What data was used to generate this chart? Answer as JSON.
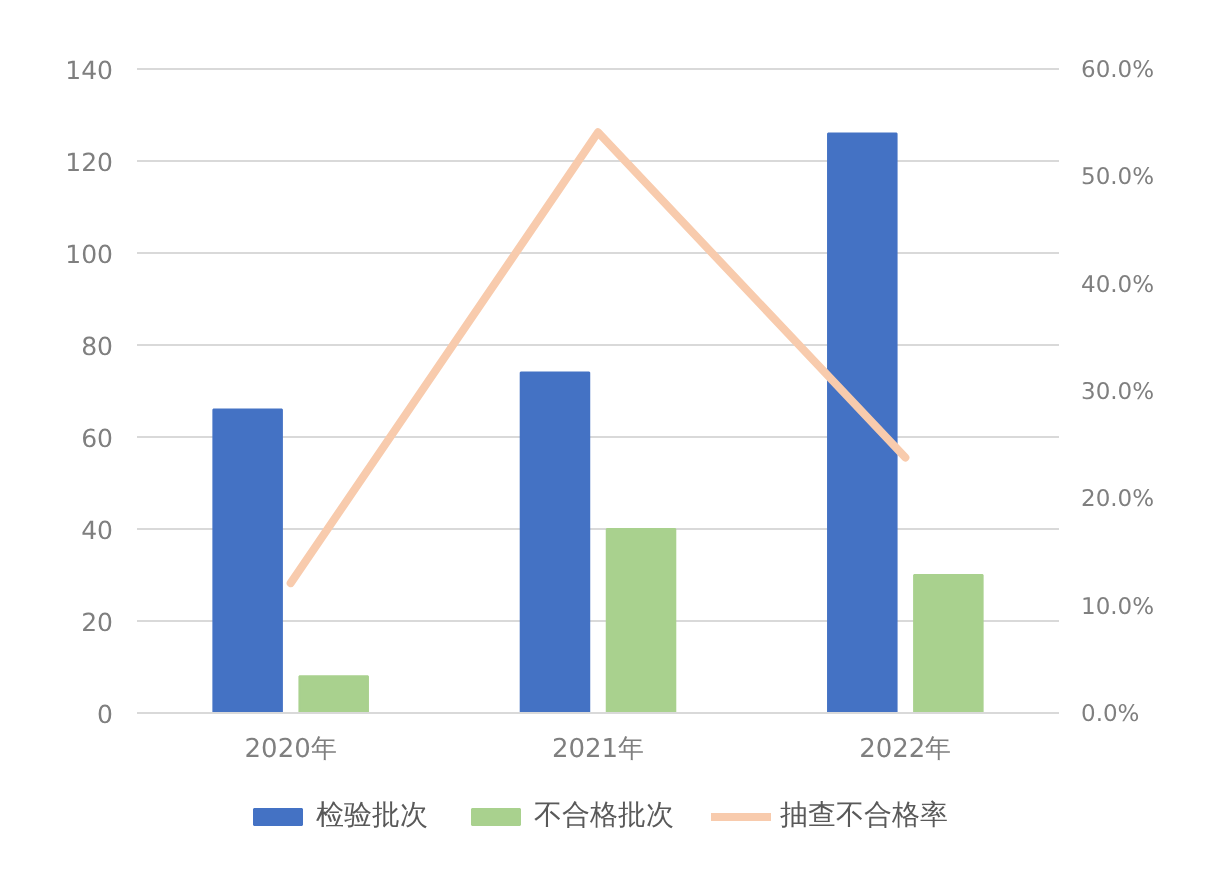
{
  "chart_data": {
    "type": "bar",
    "categories": [
      "2020年",
      "2021年",
      "2022年"
    ],
    "series": [
      {
        "name": "检验批次",
        "color": "#4472c4",
        "values": [
          66,
          74,
          126
        ]
      },
      {
        "name": "不合格批次",
        "color": "#a9d18e",
        "values": [
          8,
          40,
          30
        ]
      },
      {
        "name": "抽查不合格率",
        "type": "line",
        "axis": "y2",
        "color": "#f8cbad",
        "values": [
          12.1,
          54.1,
          23.8
        ]
      }
    ],
    "ylim": [
      0,
      140
    ],
    "yticks": [
      0,
      20,
      40,
      60,
      80,
      100,
      120,
      140
    ],
    "y2lim": [
      0,
      60
    ],
    "y2ticks": [
      {
        "value": 0,
        "label": "0.0%"
      },
      {
        "value": 10,
        "label": "10.0%"
      },
      {
        "value": 20,
        "label": "20.0%"
      },
      {
        "value": 30,
        "label": "30.0%"
      },
      {
        "value": 40,
        "label": "40.0%"
      },
      {
        "value": 50,
        "label": "50.0%"
      },
      {
        "value": 60,
        "label": "60.0%"
      }
    ],
    "grid": "y",
    "legend": "bottom"
  }
}
